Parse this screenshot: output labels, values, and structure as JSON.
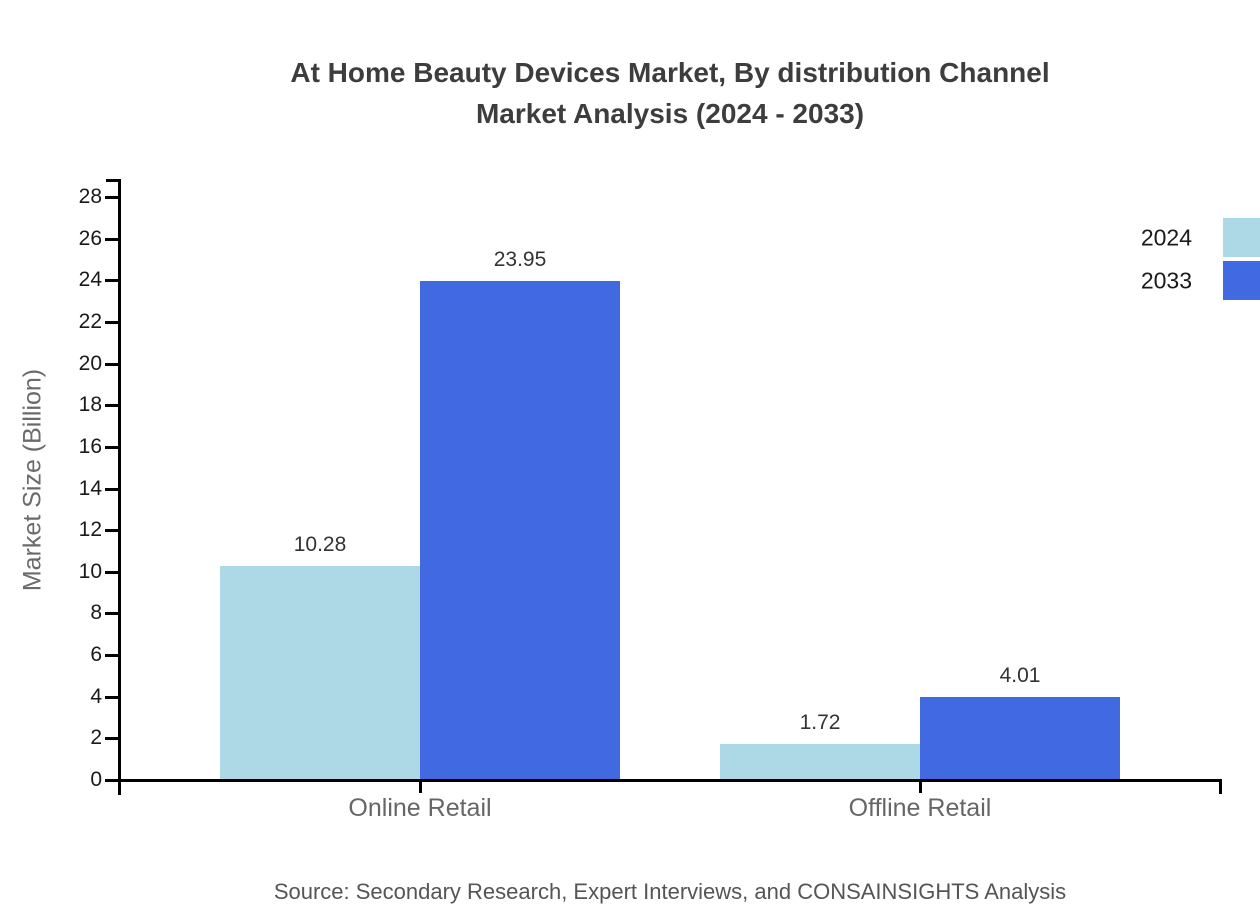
{
  "title": {
    "line1": "At Home Beauty Devices Market, By distribution Channel",
    "line2": "Market Analysis (2024 - 2033)"
  },
  "source": "Source: Secondary Research, Expert Interviews, and CONSAINSIGHTS Analysis",
  "chart_data": {
    "type": "bar",
    "categories": [
      "Online Retail",
      "Offline Retail"
    ],
    "series": [
      {
        "name": "2024",
        "color": "#ADD8E6",
        "values": [
          10.28,
          1.72
        ]
      },
      {
        "name": "2033",
        "color": "#4169E1",
        "values": [
          23.95,
          4.01
        ]
      }
    ],
    "value_labels": [
      "10.28",
      "23.95",
      "1.72",
      "4.01"
    ],
    "title": "At Home Beauty Devices Market, By distribution Channel Market Analysis (2024 - 2033)",
    "xlabel": "",
    "ylabel": "Market Size (Billion)",
    "ylim": [
      0,
      28
    ],
    "ytick_step": 2,
    "grid": false,
    "legend_position": "top-right",
    "axis_color": "#000000"
  }
}
